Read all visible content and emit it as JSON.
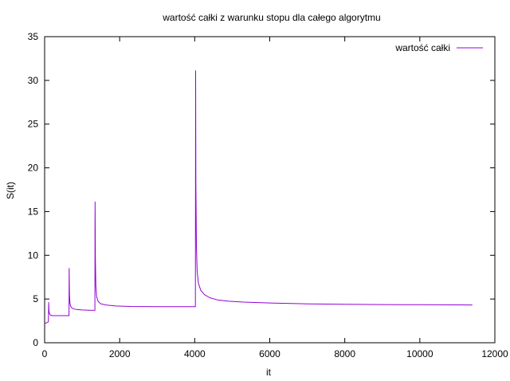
{
  "chart_data": {
    "type": "line",
    "title": "wartość całki z warunku stopu dla całego algorytmu",
    "xlabel": "it",
    "ylabel": "S(it)",
    "xlim": [
      0,
      12000
    ],
    "ylim": [
      0,
      35
    ],
    "xticks": [
      0,
      2000,
      4000,
      6000,
      8000,
      10000,
      12000
    ],
    "yticks": [
      0,
      5,
      10,
      15,
      20,
      25,
      30,
      35
    ],
    "grid": false,
    "legend_position": "top-right",
    "series": [
      {
        "name": "wartość całki",
        "color": "#9400d3",
        "x": [
          0,
          60,
          100,
          108,
          115,
          125,
          140,
          160,
          200,
          300,
          400,
          500,
          600,
          650,
          655,
          662,
          675,
          700,
          750,
          850,
          1000,
          1200,
          1340,
          1345,
          1352,
          1365,
          1390,
          1430,
          1500,
          1650,
          1900,
          2300,
          3000,
          3700,
          4018,
          4024,
          4032,
          4045,
          4065,
          4100,
          4160,
          4260,
          4400,
          4600,
          4900,
          5300,
          6000,
          7000,
          8000,
          9000,
          10000,
          11000,
          11400
        ],
        "y": [
          2.2,
          2.3,
          2.4,
          4.6,
          3.7,
          3.4,
          3.25,
          3.15,
          3.1,
          3.1,
          3.1,
          3.1,
          3.1,
          3.1,
          8.5,
          5.5,
          4.5,
          4.1,
          3.9,
          3.8,
          3.75,
          3.72,
          3.7,
          16.1,
          9.5,
          6.5,
          5.2,
          4.7,
          4.45,
          4.3,
          4.2,
          4.15,
          4.12,
          4.12,
          4.12,
          31.1,
          18.0,
          11.0,
          8.2,
          6.8,
          6.0,
          5.5,
          5.15,
          4.9,
          4.75,
          4.65,
          4.55,
          4.45,
          4.4,
          4.37,
          4.35,
          4.33,
          4.32
        ]
      }
    ]
  }
}
